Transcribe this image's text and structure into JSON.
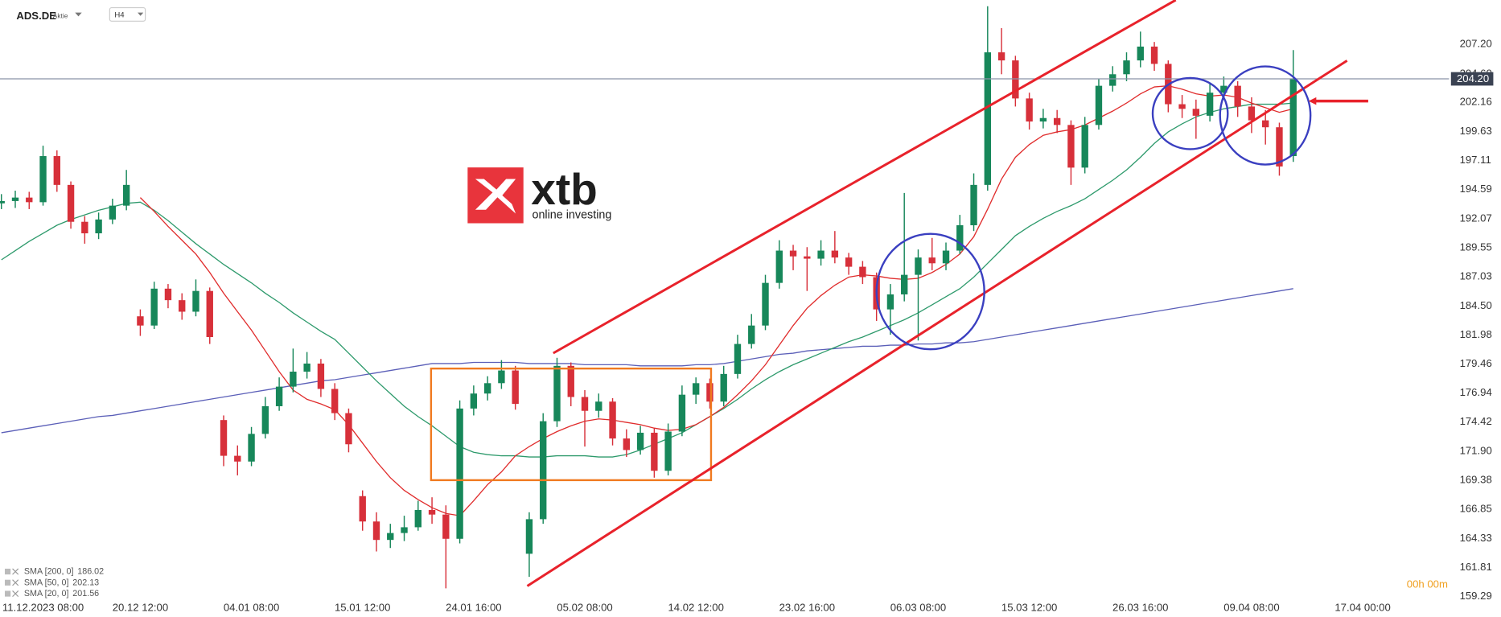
{
  "chart_data": {
    "type": "candlestick",
    "symbol": "ADS.DE",
    "instrument_type": "Aktie",
    "timeframe": "H4",
    "countdown": "00h 00m",
    "watermark": {
      "name": "xtb",
      "tagline": "online investing"
    },
    "up_color": "#17875a",
    "down_color": "#d7303a",
    "xlim": [
      -0.1,
      103.8
    ],
    "ylim": [
      158.45,
      211.04
    ],
    "xticks": [
      {
        "value": 3,
        "label": "11.12.2023  08:00"
      },
      {
        "value": 10,
        "label": "20.12  12:00"
      },
      {
        "value": 18,
        "label": "04.01  08:00"
      },
      {
        "value": 26,
        "label": "15.01  12:00"
      },
      {
        "value": 34,
        "label": "24.01  16:00"
      },
      {
        "value": 42,
        "label": "05.02  08:00"
      },
      {
        "value": 50,
        "label": "14.02  12:00"
      },
      {
        "value": 58,
        "label": "23.02  16:00"
      },
      {
        "value": 66,
        "label": "06.03  08:00"
      },
      {
        "value": 74,
        "label": "15.03  12:00"
      },
      {
        "value": 82,
        "label": "26.03  16:00"
      },
      {
        "value": 90,
        "label": "09.04  08:00"
      },
      {
        "value": 98,
        "label": "17.04  00:00"
      }
    ],
    "yticks": [
      {
        "value": 207.2,
        "label": "207.20"
      },
      {
        "value": 204.6,
        "label": "204.60"
      },
      202.16,
      199.63,
      197.11,
      194.59,
      192.07,
      189.55,
      187.03,
      {
        "value": 184.5,
        "label": "184.50"
      },
      181.98,
      179.46,
      176.94,
      174.42,
      {
        "value": 171.9,
        "label": "171.90"
      },
      169.38,
      166.85,
      164.33,
      161.81,
      159.29
    ],
    "last_price": {
      "value": 204.2,
      "label": "204.20",
      "color": "#8a93a6"
    },
    "open": [
      193.4,
      193.6,
      193.9,
      193.5,
      197.5,
      195.0,
      191.8,
      190.8,
      192.0,
      193.2,
      183.6,
      182.8,
      186.0,
      185.0,
      184.0,
      185.8,
      174.6,
      171.5,
      171.0,
      173.4,
      175.8,
      177.5,
      178.8,
      179.5,
      177.3,
      175.2,
      168.0,
      165.8,
      164.2,
      164.8,
      165.3,
      166.8,
      166.4,
      164.3,
      175.6,
      176.9,
      177.8,
      178.9,
      163.0,
      166.0,
      174.5,
      179.3,
      176.6,
      175.4,
      176.2,
      173.0,
      172.0,
      173.5,
      170.2,
      173.6,
      176.8,
      177.8,
      176.2,
      178.6,
      181.2,
      182.8,
      186.5,
      189.3,
      188.8,
      188.6,
      189.3,
      188.7,
      187.9,
      187.0,
      184.2,
      185.5,
      187.2,
      188.7,
      188.2,
      189.3,
      191.5,
      195.0,
      206.5,
      205.8,
      202.5,
      200.5,
      200.8,
      200.2,
      196.5,
      200.2,
      203.6,
      204.6,
      205.8,
      207.0,
      205.5,
      202.0,
      201.6,
      201.0,
      203.0,
      203.6,
      201.8,
      200.6,
      200.0,
      197.5
    ],
    "high": [
      194.2,
      194.5,
      194.4,
      198.4,
      198.0,
      195.3,
      192.3,
      192.6,
      193.8,
      196.3,
      184.2,
      186.6,
      186.4,
      185.6,
      186.8,
      186.1,
      175.0,
      172.4,
      174.0,
      176.6,
      178.3,
      180.8,
      180.5,
      179.9,
      177.8,
      175.6,
      168.5,
      166.6,
      165.6,
      166.3,
      167.6,
      167.9,
      167.2,
      176.3,
      177.6,
      178.4,
      179.8,
      179.3,
      166.6,
      175.2,
      180.0,
      179.6,
      177.2,
      176.9,
      176.5,
      173.8,
      174.1,
      173.9,
      174.3,
      177.6,
      178.3,
      178.2,
      179.3,
      182.0,
      183.8,
      187.2,
      190.2,
      189.8,
      189.6,
      190.2,
      191.0,
      189.1,
      188.4,
      187.4,
      186.4,
      194.3,
      189.4,
      190.4,
      190.0,
      192.4,
      196.0,
      210.5,
      208.6,
      206.2,
      203.0,
      201.6,
      201.5,
      200.6,
      200.9,
      204.2,
      205.3,
      206.5,
      208.3,
      207.4,
      205.8,
      202.8,
      202.4,
      203.8,
      204.4,
      204.0,
      202.6,
      201.5,
      200.4,
      206.7
    ],
    "low": [
      192.9,
      193.0,
      192.9,
      193.2,
      194.4,
      191.2,
      189.9,
      190.3,
      191.6,
      192.8,
      181.9,
      182.5,
      184.3,
      183.3,
      183.6,
      181.2,
      170.6,
      169.8,
      170.6,
      173.0,
      175.4,
      177.0,
      178.2,
      176.6,
      174.6,
      171.8,
      165.0,
      163.2,
      163.5,
      164.1,
      165.0,
      165.6,
      160.0,
      163.9,
      175.0,
      176.3,
      177.3,
      175.5,
      161.0,
      165.6,
      174.0,
      175.8,
      172.3,
      174.8,
      172.4,
      171.4,
      171.6,
      169.6,
      169.8,
      173.2,
      176.0,
      175.6,
      175.8,
      178.2,
      180.8,
      182.4,
      186.0,
      187.6,
      185.8,
      188.0,
      188.2,
      187.2,
      186.4,
      183.2,
      182.0,
      184.9,
      181.5,
      187.6,
      187.6,
      189.0,
      191.0,
      194.5,
      204.6,
      201.8,
      199.8,
      199.9,
      199.5,
      195.0,
      196.0,
      199.8,
      203.1,
      204.0,
      205.2,
      204.9,
      201.3,
      200.8,
      199.0,
      200.5,
      202.4,
      200.9,
      199.5,
      198.5,
      195.8,
      197.0
    ],
    "close": [
      193.6,
      193.9,
      193.5,
      197.5,
      195.0,
      191.8,
      190.8,
      192.0,
      193.2,
      195.0,
      182.8,
      186.0,
      185.0,
      184.0,
      185.8,
      181.8,
      171.5,
      171.0,
      173.4,
      175.8,
      177.5,
      178.8,
      179.5,
      177.3,
      175.2,
      172.5,
      165.8,
      164.2,
      164.8,
      165.3,
      166.8,
      166.4,
      164.3,
      175.6,
      176.9,
      177.8,
      178.9,
      176.0,
      166.0,
      174.5,
      179.3,
      176.6,
      175.4,
      176.2,
      173.0,
      172.0,
      173.5,
      170.2,
      173.6,
      176.8,
      177.8,
      176.2,
      178.6,
      181.2,
      182.8,
      186.5,
      189.3,
      188.8,
      188.6,
      189.3,
      188.7,
      187.9,
      187.0,
      184.2,
      185.5,
      187.2,
      188.7,
      188.2,
      189.3,
      191.5,
      195.0,
      206.5,
      205.8,
      202.5,
      200.5,
      200.8,
      200.2,
      196.5,
      200.2,
      203.6,
      204.6,
      205.8,
      207.0,
      205.5,
      202.0,
      201.6,
      201.0,
      203.0,
      203.6,
      201.8,
      200.6,
      200.0,
      196.6,
      204.2
    ],
    "series": [
      {
        "name": "SMA [200, 0]",
        "last_value": 186.02,
        "color": "#5b5fb8",
        "values": [
          173.5,
          173.7,
          173.9,
          174.1,
          174.3,
          174.5,
          174.7,
          174.9,
          175.0,
          175.2,
          175.4,
          175.6,
          175.8,
          176.0,
          176.2,
          176.4,
          176.6,
          176.8,
          177.0,
          177.2,
          177.4,
          177.6,
          177.8,
          178.0,
          178.1,
          178.3,
          178.5,
          178.7,
          178.9,
          179.1,
          179.3,
          179.5,
          179.5,
          179.5,
          179.6,
          179.6,
          179.6,
          179.6,
          179.5,
          179.5,
          179.5,
          179.5,
          179.4,
          179.4,
          179.4,
          179.4,
          179.3,
          179.3,
          179.3,
          179.3,
          179.4,
          179.4,
          179.5,
          179.7,
          179.9,
          180.1,
          180.3,
          180.4,
          180.6,
          180.7,
          180.8,
          180.9,
          181.0,
          181.0,
          181.1,
          181.1,
          181.2,
          181.2,
          181.3,
          181.3,
          181.4,
          181.6,
          181.8,
          182.0,
          182.2,
          182.4,
          182.6,
          182.8,
          183.0,
          183.2,
          183.4,
          183.6,
          183.8,
          184.0,
          184.2,
          184.4,
          184.6,
          184.8,
          185.0,
          185.2,
          185.4,
          185.6,
          185.8,
          186.0
        ]
      },
      {
        "name": "SMA [50, 0]",
        "last_value": 202.13,
        "color": "#2e9a6c",
        "values": [
          188.5,
          189.3,
          190.1,
          190.8,
          191.5,
          192.0,
          192.4,
          192.8,
          193.1,
          193.4,
          193.5,
          192.8,
          191.9,
          190.9,
          189.9,
          189.0,
          188.1,
          187.3,
          186.5,
          185.6,
          184.8,
          183.9,
          183.1,
          182.3,
          181.6,
          180.4,
          179.2,
          178.0,
          176.9,
          175.8,
          174.9,
          174.1,
          173.2,
          172.3,
          171.8,
          171.6,
          171.5,
          171.5,
          171.4,
          171.4,
          171.5,
          171.5,
          171.5,
          171.4,
          171.4,
          171.6,
          172.0,
          172.5,
          173.0,
          173.5,
          174.2,
          174.9,
          175.6,
          176.4,
          177.3,
          178.1,
          178.8,
          179.4,
          179.9,
          180.4,
          180.9,
          181.4,
          181.8,
          182.3,
          182.8,
          183.3,
          183.9,
          184.6,
          185.3,
          186.0,
          187.0,
          188.2,
          189.4,
          190.6,
          191.4,
          192.1,
          192.7,
          193.2,
          193.8,
          194.6,
          195.4,
          196.3,
          197.4,
          198.6,
          199.6,
          200.3,
          200.9,
          201.3,
          201.6,
          201.8,
          202.0,
          202.0,
          202.0,
          202.1
        ]
      },
      {
        "name": "SMA [20, 0]",
        "last_value": 201.56,
        "color": "#e02c2c",
        "values": [
          null,
          null,
          null,
          null,
          null,
          null,
          null,
          null,
          null,
          null,
          193.9,
          192.7,
          191.4,
          190.2,
          189.0,
          187.4,
          185.6,
          184.0,
          182.4,
          180.6,
          178.8,
          177.2,
          176.4,
          176.0,
          175.5,
          174.2,
          172.6,
          171.0,
          169.6,
          168.5,
          167.7,
          167.0,
          166.5,
          166.3,
          167.6,
          169.0,
          170.1,
          171.5,
          172.3,
          173.0,
          173.6,
          174.1,
          174.5,
          174.7,
          174.6,
          174.4,
          174.2,
          173.9,
          173.7,
          173.8,
          174.2,
          174.9,
          175.7,
          176.8,
          178.0,
          179.4,
          181.1,
          182.8,
          184.3,
          185.4,
          186.3,
          187.0,
          187.2,
          187.1,
          186.9,
          186.8,
          186.9,
          187.4,
          188.1,
          189.0,
          190.5,
          192.9,
          195.5,
          197.4,
          198.5,
          199.3,
          199.6,
          199.8,
          200.2,
          200.8,
          201.4,
          202.1,
          202.9,
          203.5,
          203.6,
          203.3,
          202.9,
          202.7,
          202.8,
          202.6,
          202.1,
          201.7,
          201.3,
          201.6
        ]
      }
    ]
  }
}
